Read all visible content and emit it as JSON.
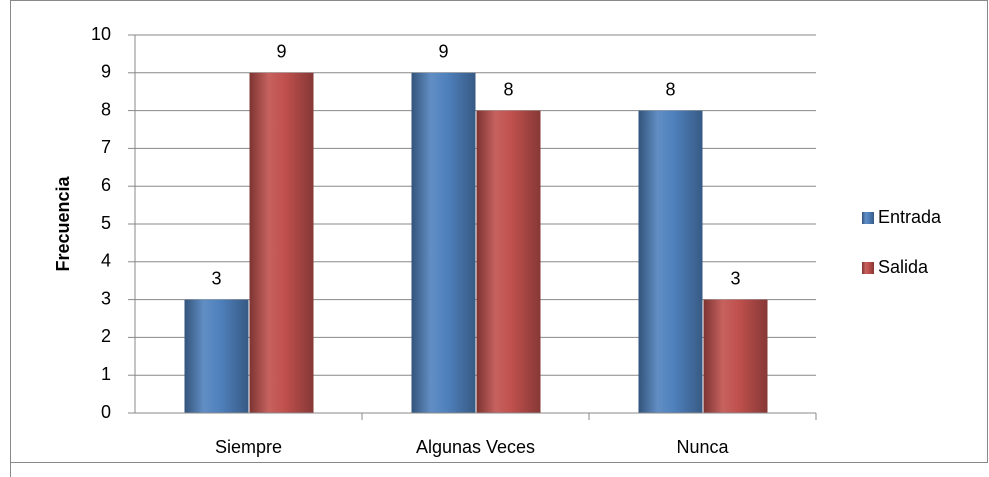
{
  "chart_data": {
    "type": "bar",
    "y_label": "Frecuencia",
    "categories": [
      "Siempre",
      "Algunas Veces",
      "Nunca"
    ],
    "series": [
      {
        "name": "Entrada",
        "color": "#4f81bd",
        "values": [
          3,
          9,
          8
        ]
      },
      {
        "name": "Salida",
        "color": "#c0504d",
        "values": [
          9,
          8,
          3
        ]
      }
    ],
    "ylim": [
      0,
      10
    ],
    "yticks": [
      0,
      1,
      2,
      3,
      4,
      5,
      6,
      7,
      8,
      9,
      10
    ],
    "grid": true,
    "legend": "right"
  }
}
